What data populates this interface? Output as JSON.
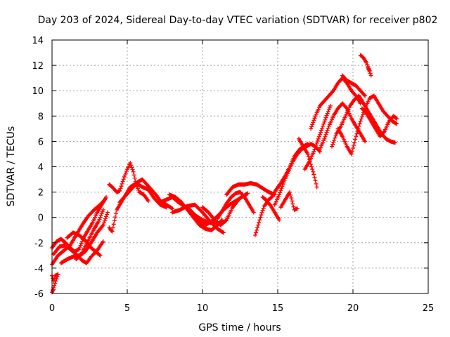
{
  "chart_data": {
    "type": "scatter",
    "title": "Day 203 of 2024, Sidereal Day-to-day VTEC variation (SDTVAR) for receiver p802",
    "xlabel": "GPS time / hours",
    "ylabel": "SDTVAR / TECUs",
    "xlim": [
      0,
      25
    ],
    "ylim": [
      -6,
      14
    ],
    "xticks": [
      0,
      5,
      10,
      15,
      20,
      25
    ],
    "yticks": [
      -6,
      -4,
      -2,
      0,
      2,
      4,
      6,
      8,
      10,
      12,
      14
    ],
    "grid": true,
    "marker": "+",
    "color": "#ff0000",
    "series": [
      {
        "name": "track-1",
        "points": [
          [
            0.0,
            -3.7
          ],
          [
            0.4,
            -3.0
          ],
          [
            0.8,
            -2.6
          ],
          [
            1.2,
            -2.2
          ],
          [
            1.6,
            -1.4
          ],
          [
            2.0,
            -0.6
          ],
          [
            2.4,
            0.1
          ],
          [
            2.8,
            0.6
          ],
          [
            3.2,
            1.0
          ],
          [
            3.5,
            1.4
          ]
        ]
      },
      {
        "name": "track-2",
        "points": [
          [
            0.1,
            -2.9
          ],
          [
            0.5,
            -2.3
          ],
          [
            0.9,
            -2.2
          ],
          [
            1.3,
            -2.6
          ],
          [
            1.7,
            -3.0
          ],
          [
            2.0,
            -3.4
          ],
          [
            2.3,
            -3.6
          ],
          [
            2.6,
            -3.1
          ],
          [
            3.0,
            -2.6
          ],
          [
            3.4,
            -1.9
          ]
        ]
      },
      {
        "name": "track-3",
        "points": [
          [
            0.0,
            -2.4
          ],
          [
            0.3,
            -1.9
          ],
          [
            0.6,
            -1.7
          ],
          [
            0.9,
            -2.0
          ],
          [
            1.2,
            -2.4
          ],
          [
            1.5,
            -2.7
          ],
          [
            1.8,
            -2.5
          ],
          [
            2.1,
            -1.6
          ],
          [
            2.4,
            -1.0
          ],
          [
            2.7,
            -0.4
          ],
          [
            3.0,
            0.4
          ],
          [
            3.3,
            1.0
          ],
          [
            3.6,
            1.6
          ]
        ]
      },
      {
        "name": "track-4",
        "points": [
          [
            0.6,
            -3.6
          ],
          [
            1.0,
            -3.3
          ],
          [
            1.4,
            -3.1
          ],
          [
            1.8,
            -3.0
          ],
          [
            2.2,
            -2.7
          ],
          [
            2.6,
            -2.0
          ],
          [
            3.0,
            -1.2
          ],
          [
            3.4,
            -0.6
          ],
          [
            3.7,
            0.4
          ]
        ]
      },
      {
        "name": "track-5",
        "points": [
          [
            1.6,
            -3.3
          ],
          [
            1.9,
            -3.0
          ],
          [
            2.2,
            -2.3
          ],
          [
            2.5,
            -1.6
          ],
          [
            2.8,
            -0.9
          ],
          [
            3.1,
            -0.3
          ],
          [
            3.4,
            0.6
          ]
        ]
      },
      {
        "name": "track-6",
        "points": [
          [
            0.0,
            -4.6
          ],
          [
            0.1,
            -5.0
          ],
          [
            0.2,
            -4.6
          ],
          [
            0.4,
            -4.5
          ],
          [
            0.0,
            -5.9
          ],
          [
            0.1,
            -5.7
          ]
        ]
      },
      {
        "name": "track-7",
        "points": [
          [
            3.8,
            -0.8
          ],
          [
            3.9,
            -1.0
          ],
          [
            4.0,
            -1.1
          ],
          [
            4.3,
            0.6
          ],
          [
            4.5,
            1.0
          ],
          [
            4.8,
            1.6
          ],
          [
            5.2,
            2.4
          ],
          [
            5.6,
            2.7
          ],
          [
            6.0,
            2.4
          ],
          [
            6.4,
            2.2
          ],
          [
            6.8,
            1.5
          ],
          [
            7.2,
            1.0
          ],
          [
            7.6,
            0.8
          ]
        ]
      },
      {
        "name": "track-8",
        "points": [
          [
            3.8,
            2.6
          ],
          [
            4.0,
            2.4
          ],
          [
            4.3,
            2.0
          ],
          [
            4.5,
            2.1
          ],
          [
            4.8,
            3.2
          ],
          [
            5.0,
            3.8
          ],
          [
            5.2,
            4.3
          ],
          [
            5.4,
            3.6
          ],
          [
            5.6,
            2.6
          ],
          [
            5.8,
            2.0
          ],
          [
            6.1,
            1.8
          ],
          [
            6.4,
            1.3
          ]
        ]
      },
      {
        "name": "track-9",
        "points": [
          [
            4.5,
            1.2
          ],
          [
            4.8,
            1.6
          ],
          [
            5.1,
            2.0
          ],
          [
            5.4,
            2.4
          ],
          [
            5.7,
            2.8
          ],
          [
            6.0,
            3.0
          ],
          [
            6.3,
            2.6
          ],
          [
            6.6,
            2.2
          ],
          [
            6.9,
            1.8
          ],
          [
            7.2,
            1.3
          ],
          [
            7.6,
            1.0
          ],
          [
            8.0,
            0.7
          ]
        ]
      },
      {
        "name": "track-10",
        "points": [
          [
            7.2,
            1.2
          ],
          [
            7.6,
            1.4
          ],
          [
            8.0,
            1.6
          ],
          [
            8.4,
            1.2
          ],
          [
            8.8,
            0.9
          ],
          [
            9.2,
            0.5
          ],
          [
            9.6,
            0.1
          ],
          [
            10.0,
            -0.2
          ],
          [
            10.4,
            -0.4
          ],
          [
            10.8,
            -0.5
          ]
        ]
      },
      {
        "name": "track-11",
        "points": [
          [
            7.8,
            1.8
          ],
          [
            8.2,
            1.6
          ],
          [
            8.6,
            1.2
          ],
          [
            9.0,
            0.6
          ],
          [
            9.4,
            0.0
          ],
          [
            9.8,
            -0.6
          ],
          [
            10.2,
            -0.9
          ],
          [
            10.6,
            -1.0
          ],
          [
            11.0,
            -0.6
          ],
          [
            11.3,
            -0.2
          ]
        ]
      },
      {
        "name": "track-12",
        "points": [
          [
            8.0,
            0.4
          ],
          [
            8.5,
            0.6
          ],
          [
            9.0,
            0.9
          ],
          [
            9.5,
            1.0
          ],
          [
            10.0,
            0.4
          ],
          [
            10.5,
            -0.3
          ],
          [
            11.0,
            -0.9
          ],
          [
            11.4,
            -1.2
          ]
        ]
      },
      {
        "name": "track-13",
        "points": [
          [
            9.0,
            0.8
          ],
          [
            9.4,
            0.3
          ],
          [
            9.8,
            -0.3
          ],
          [
            10.2,
            -0.6
          ],
          [
            10.6,
            -0.3
          ],
          [
            11.0,
            0.1
          ],
          [
            11.4,
            0.6
          ],
          [
            11.8,
            1.0
          ],
          [
            12.2,
            1.3
          ],
          [
            12.6,
            1.6
          ],
          [
            13.0,
            1.9
          ]
        ]
      },
      {
        "name": "track-14",
        "points": [
          [
            11.0,
            -0.1
          ],
          [
            11.3,
            0.5
          ],
          [
            11.6,
            1.1
          ],
          [
            11.9,
            1.6
          ],
          [
            12.2,
            1.9
          ],
          [
            12.5,
            2.0
          ],
          [
            12.8,
            1.6
          ],
          [
            13.1,
            1.0
          ],
          [
            13.4,
            0.4
          ]
        ]
      },
      {
        "name": "track-15",
        "points": [
          [
            11.6,
            1.8
          ],
          [
            12.0,
            2.4
          ],
          [
            12.4,
            2.6
          ],
          [
            12.8,
            2.6
          ],
          [
            13.2,
            2.7
          ],
          [
            13.6,
            2.6
          ],
          [
            14.0,
            2.3
          ],
          [
            14.4,
            2.0
          ],
          [
            14.8,
            1.8
          ]
        ]
      },
      {
        "name": "track-16",
        "points": [
          [
            13.5,
            -1.4
          ],
          [
            13.7,
            -0.6
          ],
          [
            13.9,
            0.2
          ],
          [
            14.1,
            0.9
          ],
          [
            14.3,
            1.2
          ],
          [
            14.5,
            1.0
          ],
          [
            14.7,
            0.6
          ],
          [
            14.9,
            0.2
          ],
          [
            15.1,
            -0.2
          ]
        ]
      },
      {
        "name": "track-17",
        "points": [
          [
            14.0,
            1.6
          ],
          [
            14.3,
            1.3
          ],
          [
            14.6,
            1.6
          ],
          [
            14.9,
            2.2
          ],
          [
            15.2,
            2.7
          ],
          [
            15.5,
            3.3
          ],
          [
            15.8,
            4.0
          ],
          [
            16.1,
            4.8
          ],
          [
            16.4,
            5.3
          ],
          [
            16.7,
            5.6
          ],
          [
            17.0,
            5.8
          ]
        ]
      },
      {
        "name": "track-18",
        "points": [
          [
            14.8,
            1.0
          ],
          [
            15.1,
            1.8
          ],
          [
            15.4,
            2.8
          ],
          [
            15.7,
            3.6
          ],
          [
            16.0,
            4.4
          ],
          [
            16.3,
            5.0
          ],
          [
            16.6,
            5.4
          ],
          [
            16.9,
            5.6
          ],
          [
            17.2,
            5.8
          ],
          [
            17.5,
            5.6
          ],
          [
            17.8,
            5.2
          ]
        ]
      },
      {
        "name": "track-19",
        "points": [
          [
            15.2,
            0.8
          ],
          [
            15.4,
            1.2
          ],
          [
            15.6,
            1.6
          ],
          [
            15.8,
            2.0
          ],
          [
            16.1,
            0.6
          ],
          [
            16.3,
            0.7
          ]
        ]
      },
      {
        "name": "track-20",
        "points": [
          [
            16.4,
            6.2
          ],
          [
            16.6,
            5.8
          ],
          [
            16.8,
            5.4
          ],
          [
            17.0,
            5.0
          ],
          [
            17.2,
            4.2
          ],
          [
            17.4,
            3.4
          ],
          [
            17.6,
            2.4
          ]
        ]
      },
      {
        "name": "track-21",
        "points": [
          [
            17.2,
            7.0
          ],
          [
            17.5,
            8.0
          ],
          [
            17.8,
            8.8
          ],
          [
            18.1,
            9.2
          ],
          [
            18.4,
            9.6
          ],
          [
            18.7,
            10.0
          ],
          [
            19.0,
            10.6
          ],
          [
            19.3,
            11.0
          ],
          [
            19.6,
            10.6
          ],
          [
            19.9,
            10.0
          ],
          [
            20.2,
            9.6
          ],
          [
            20.5,
            9.0
          ]
        ]
      },
      {
        "name": "track-22",
        "points": [
          [
            17.8,
            5.4
          ],
          [
            18.1,
            6.2
          ],
          [
            18.4,
            7.2
          ],
          [
            18.7,
            8.0
          ],
          [
            19.0,
            8.6
          ],
          [
            19.3,
            9.0
          ],
          [
            19.6,
            8.6
          ],
          [
            19.9,
            7.8
          ],
          [
            20.2,
            7.2
          ],
          [
            20.5,
            6.6
          ],
          [
            20.8,
            6.0
          ]
        ]
      },
      {
        "name": "track-23",
        "points": [
          [
            18.6,
            5.6
          ],
          [
            18.9,
            6.6
          ],
          [
            19.2,
            7.2
          ],
          [
            19.5,
            8.0
          ],
          [
            19.8,
            8.8
          ],
          [
            20.1,
            9.3
          ],
          [
            20.4,
            9.6
          ],
          [
            20.7,
            9.0
          ],
          [
            21.0,
            8.4
          ],
          [
            21.3,
            7.8
          ],
          [
            21.6,
            7.2
          ],
          [
            21.9,
            6.6
          ],
          [
            22.2,
            6.2
          ],
          [
            22.5,
            6.0
          ],
          [
            22.8,
            5.9
          ]
        ]
      },
      {
        "name": "track-24",
        "points": [
          [
            16.8,
            3.8
          ],
          [
            17.1,
            4.4
          ],
          [
            17.4,
            5.2
          ],
          [
            17.7,
            6.2
          ],
          [
            18.0,
            7.2
          ],
          [
            18.3,
            8.2
          ],
          [
            18.5,
            8.8
          ]
        ]
      },
      {
        "name": "track-25",
        "points": [
          [
            19.0,
            7.0
          ],
          [
            19.3,
            6.4
          ],
          [
            19.6,
            5.6
          ],
          [
            19.9,
            5.0
          ],
          [
            20.2,
            6.4
          ],
          [
            20.5,
            7.6
          ],
          [
            20.8,
            8.6
          ],
          [
            21.1,
            9.4
          ],
          [
            21.4,
            9.6
          ],
          [
            21.7,
            9.0
          ],
          [
            22.0,
            8.4
          ],
          [
            22.3,
            8.0
          ],
          [
            22.6,
            7.6
          ],
          [
            22.9,
            7.4
          ]
        ]
      },
      {
        "name": "track-26",
        "points": [
          [
            20.6,
            8.6
          ],
          [
            20.9,
            8.2
          ],
          [
            21.2,
            7.6
          ],
          [
            21.5,
            7.0
          ],
          [
            21.8,
            6.4
          ],
          [
            22.1,
            6.8
          ],
          [
            22.4,
            7.6
          ],
          [
            22.7,
            8.0
          ],
          [
            22.9,
            7.8
          ]
        ]
      },
      {
        "name": "track-27",
        "points": [
          [
            20.5,
            12.8
          ],
          [
            20.7,
            12.6
          ],
          [
            20.9,
            12.2
          ],
          [
            21.1,
            11.6
          ],
          [
            21.0,
            11.8
          ],
          [
            21.2,
            11.2
          ]
        ]
      },
      {
        "name": "track-28",
        "points": [
          [
            19.3,
            11.2
          ],
          [
            19.6,
            10.8
          ],
          [
            19.9,
            10.6
          ],
          [
            20.2,
            10.4
          ],
          [
            20.5,
            10.0
          ],
          [
            20.8,
            9.6
          ]
        ]
      },
      {
        "name": "track-29",
        "points": [
          [
            1.0,
            -1.6
          ],
          [
            1.4,
            -1.2
          ],
          [
            1.8,
            -1.4
          ],
          [
            2.2,
            -1.8
          ],
          [
            2.6,
            -2.4
          ],
          [
            3.0,
            -2.8
          ],
          [
            3.2,
            -3.0
          ]
        ]
      },
      {
        "name": "track-30",
        "points": [
          [
            10.0,
            0.8
          ],
          [
            10.4,
            0.4
          ],
          [
            10.8,
            -0.2
          ],
          [
            11.2,
            -0.6
          ],
          [
            11.6,
            -0.2
          ],
          [
            12.0,
            0.8
          ],
          [
            12.4,
            1.4
          ]
        ]
      }
    ]
  }
}
